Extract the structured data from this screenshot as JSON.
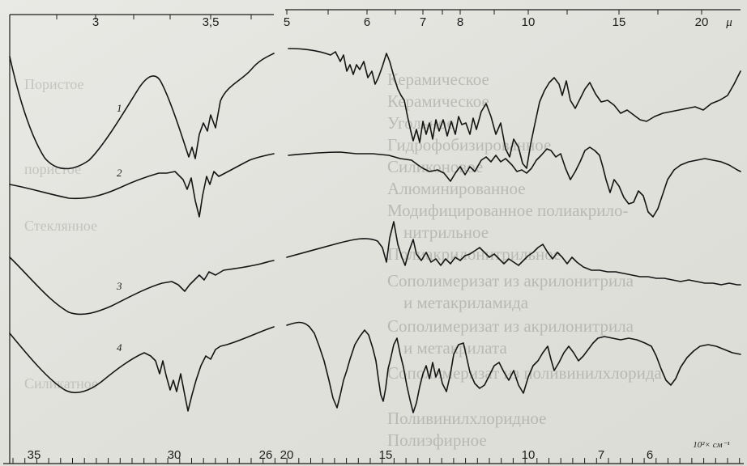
{
  "chart_data": {
    "type": "line",
    "top_axis": {
      "unit": "μ",
      "left_panel_ticks": [
        "3",
        "3,5"
      ],
      "right_panel_ticks": [
        "5",
        "6",
        "7",
        "8",
        "10",
        "15",
        "20"
      ]
    },
    "bottom_axis": {
      "unit": "10²× см⁻¹",
      "left_panel_ticks": [
        "35",
        "30",
        "26"
      ],
      "right_panel_ticks": [
        "20",
        "15",
        "10",
        "7",
        "6"
      ]
    },
    "series": [
      {
        "name": "1"
      },
      {
        "name": "2"
      },
      {
        "name": "3"
      },
      {
        "name": "4"
      }
    ],
    "show_through_text": {
      "right": [
        "Керамическое",
        "Керамическое",
        "Угольное",
        "Гидрофобизированное",
        "Силиконовое",
        "Алюминированное",
        "Модифицированное полиакрило-",
        "нитрильное",
        "Полиакрилонитрильное",
        "Сополимеризат из акрилонитрила",
        "и метакриламида",
        "Сополимеризат из акрилонитрила",
        "и метакрилата",
        "Сополимеризат из поливинилхлорида",
        "Поливинилхлоридное",
        "Полиэфирное"
      ],
      "left": [
        "Пористое",
        "пористое",
        "Стеклянное",
        "Силикатное"
      ]
    }
  }
}
